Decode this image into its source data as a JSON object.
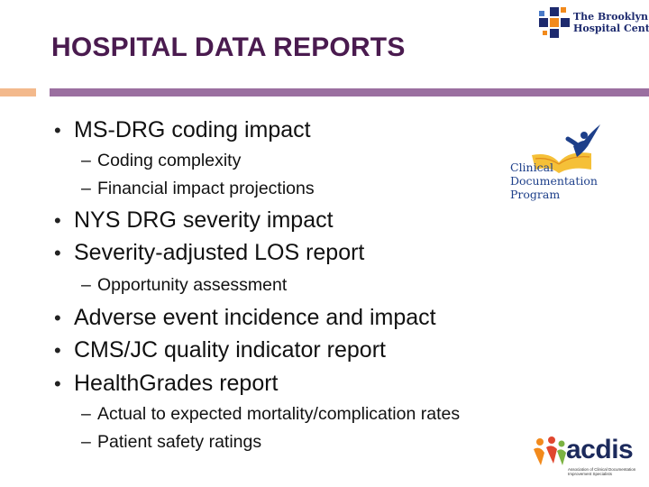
{
  "title": "HOSPITAL DATA REPORTS",
  "bullets": [
    {
      "text": "MS-DRG coding impact",
      "sub": [
        "Coding complexity",
        "Financial impact projections"
      ]
    },
    {
      "text": "NYS DRG severity impact",
      "sub": []
    },
    {
      "text": "Severity-adjusted LOS report",
      "sub": [
        "Opportunity assessment"
      ]
    },
    {
      "text": "Adverse event incidence and impact",
      "sub": []
    },
    {
      "text": "CMS/JC quality indicator report",
      "sub": []
    },
    {
      "text": "HealthGrades report",
      "sub": [
        "Actual to expected mortality/complication rates",
        "Patient safety ratings"
      ]
    }
  ],
  "bullet_glyph": "•",
  "sub_glyph": "–",
  "logos": {
    "brooklyn": {
      "line1": "The Brooklyn",
      "line2": "Hospital Center"
    },
    "cdp": {
      "line1": "Clinical",
      "line2": "Documentation",
      "line3": "Program"
    },
    "acdis": {
      "word": "acdis",
      "sub": "Association of Clinical Documentation Improvement Specialists"
    }
  },
  "colors": {
    "title": "#4a1b4f",
    "accent_purple": "#9b6fa0",
    "accent_orange": "#f3b98c",
    "logo_blue": "#1d3f8a"
  }
}
